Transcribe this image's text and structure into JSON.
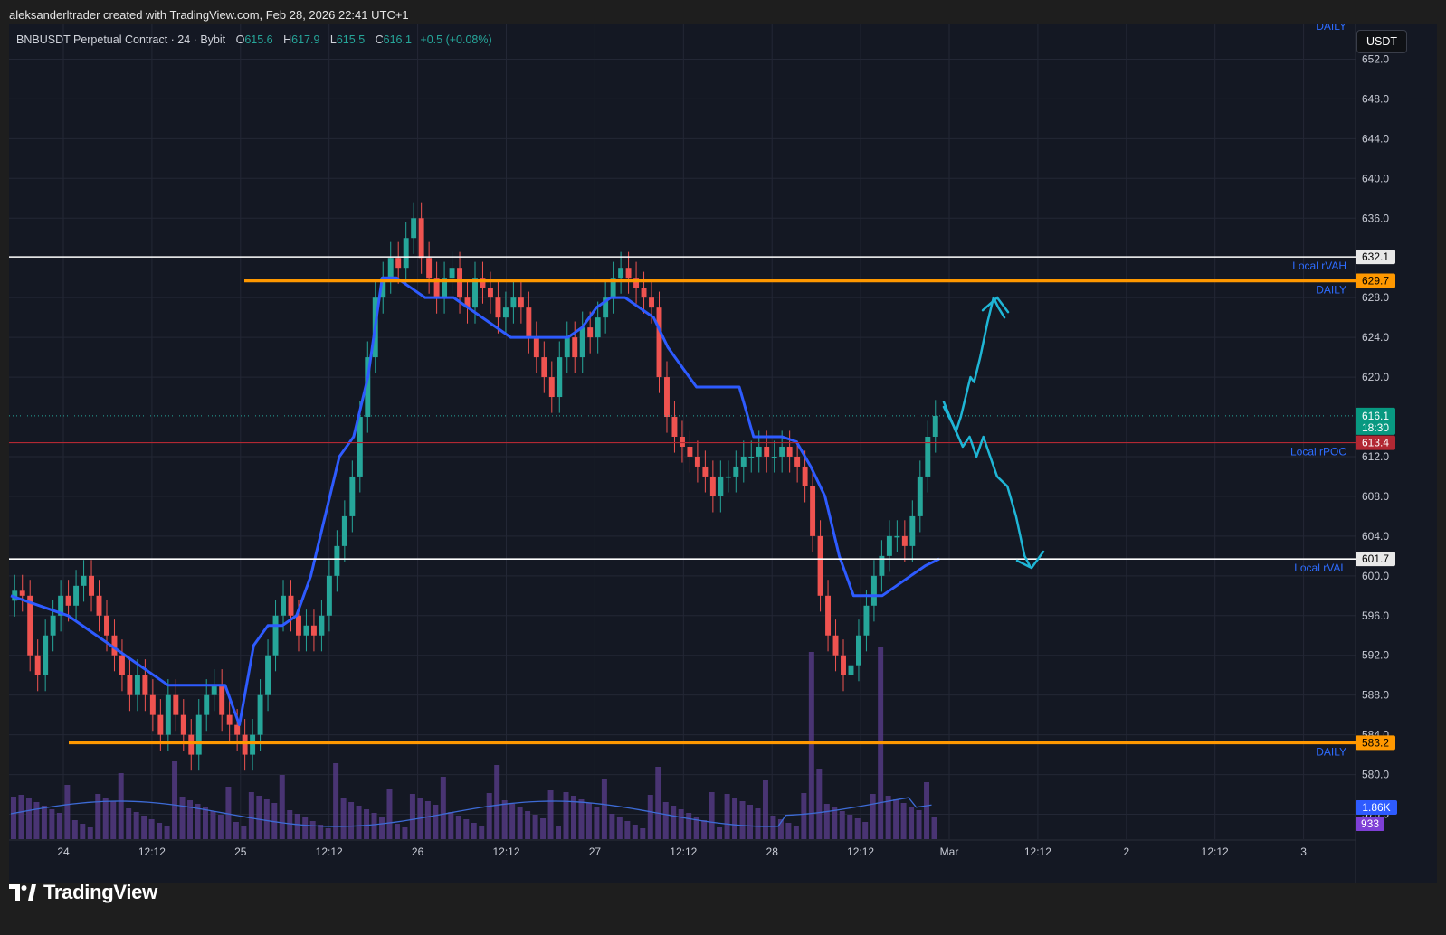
{
  "attribution": "aleksanderltrader created with TradingView.com, Feb 28, 2026 22:41 UTC+1",
  "legend": {
    "symbol": "BNBUSDT Perpetual Contract · 24 · Bybit",
    "open_label": "O",
    "open": "615.6",
    "high_label": "H",
    "high": "617.9",
    "low_label": "L",
    "low": "615.5",
    "close_label": "C",
    "close": "616.1",
    "change": "+0.5 (+0.08%)"
  },
  "currency_badge": "USDT",
  "brand": "TradingView",
  "colors": {
    "background": "#141823",
    "grid": "#232735",
    "up_candle": "#26a69a",
    "down_candle": "#ef5350",
    "vwap_line": "#2e5bff",
    "daily_level": "#ff9800",
    "local_level": "#ffffff",
    "poc_line": "#b22833",
    "projection": "#1fb6d6",
    "volume": "#5b3d8f",
    "volume_ma": "#3d6bd6"
  },
  "icons": {
    "logo": "tradingview-logo-icon"
  },
  "chart_data": {
    "type": "candlestick",
    "y_axis": {
      "ticks": [
        "652.0",
        "648.0",
        "644.0",
        "640.0",
        "636.0",
        "628.0",
        "624.0",
        "620.0",
        "612.0",
        "608.0",
        "604.0",
        "600.0",
        "596.0",
        "592.0",
        "588.0",
        "584.0",
        "580.0",
        "576.0"
      ],
      "range": [
        573.5,
        655.5
      ]
    },
    "x_axis": {
      "ticks": [
        "24",
        "12:12",
        "25",
        "12:12",
        "26",
        "12:12",
        "27",
        "12:12",
        "28",
        "12:12",
        "Mar",
        "12:12",
        "2",
        "12:12",
        "3"
      ]
    },
    "price_levels": [
      {
        "value": 632.1,
        "label": "632.1",
        "side_label": "Local rVAH",
        "kind": "local"
      },
      {
        "value": 629.7,
        "label": "629.7",
        "side_label": "DAILY",
        "kind": "daily"
      },
      {
        "value": 613.4,
        "label": "613.4",
        "side_label": "Local rPOC",
        "kind": "poc"
      },
      {
        "value": 601.7,
        "label": "601.7",
        "side_label": "Local rVAL",
        "kind": "local"
      },
      {
        "value": 583.2,
        "label": "583.2",
        "side_label": "DAILY",
        "kind": "daily"
      }
    ],
    "top_corner_label": "DAILY",
    "last_price": {
      "value": 616.1,
      "label": "616.1",
      "countdown": "18:30"
    },
    "volume_labels": {
      "volume": "1.86K",
      "volume_ma": "933"
    },
    "candle_closes": [
      598.5,
      598,
      592,
      590,
      594,
      596,
      598,
      597,
      599,
      600,
      598,
      596,
      594,
      592,
      590,
      588,
      590,
      588,
      586,
      584,
      588,
      586,
      584,
      582,
      586,
      588,
      589,
      586,
      585,
      584,
      582,
      584,
      588,
      592,
      596,
      598,
      596,
      594,
      595,
      594,
      596,
      600,
      603,
      606,
      610,
      616,
      622,
      628,
      630,
      632,
      631,
      634,
      636,
      632,
      630,
      628,
      630,
      631,
      628,
      627,
      630,
      629,
      628,
      626,
      627,
      628,
      627,
      624,
      622,
      620,
      618,
      622,
      624,
      622,
      625,
      624,
      626,
      628,
      630,
      631,
      630,
      629,
      628,
      627,
      620,
      616,
      614,
      613,
      612,
      611,
      610,
      608,
      610,
      610,
      611,
      612,
      612,
      613,
      612,
      612,
      613,
      612,
      611,
      609,
      604,
      598,
      594,
      592,
      590,
      591,
      594,
      597,
      600,
      602,
      604,
      604,
      603,
      606,
      610,
      614,
      616.1
    ],
    "vwap": [
      598,
      597.5,
      597,
      596.5,
      596,
      595,
      594,
      593,
      592,
      591,
      590,
      589,
      589,
      589,
      589,
      589,
      585,
      593,
      595,
      595,
      596,
      600,
      606,
      612,
      614,
      620,
      630,
      630,
      629,
      628,
      628,
      628,
      627,
      626,
      625,
      624,
      624,
      624,
      624,
      624,
      625,
      627,
      628,
      628,
      627,
      626,
      623,
      621,
      619,
      619,
      619,
      619,
      614,
      614,
      614,
      613.5,
      611,
      608,
      602,
      598,
      598,
      598,
      599,
      600,
      601,
      601.7
    ],
    "projection_up": [
      [
        617.5,
        0
      ],
      [
        616,
        0.1
      ],
      [
        614.5,
        0.2
      ],
      [
        616,
        0.28
      ],
      [
        618,
        0.36
      ],
      [
        620,
        0.44
      ],
      [
        619.5,
        0.5
      ],
      [
        622,
        0.6
      ],
      [
        625.5,
        0.72
      ],
      [
        628,
        0.82
      ],
      [
        627,
        0.9
      ],
      [
        626,
        1
      ]
    ],
    "projection_down": [
      [
        617,
        0
      ],
      [
        615,
        0.12
      ],
      [
        613,
        0.22
      ],
      [
        614,
        0.3
      ],
      [
        612,
        0.38
      ],
      [
        614,
        0.46
      ],
      [
        612,
        0.54
      ],
      [
        610,
        0.62
      ],
      [
        609,
        0.74
      ],
      [
        606,
        0.84
      ],
      [
        602,
        0.94
      ],
      [
        601,
        1
      ]
    ]
  }
}
